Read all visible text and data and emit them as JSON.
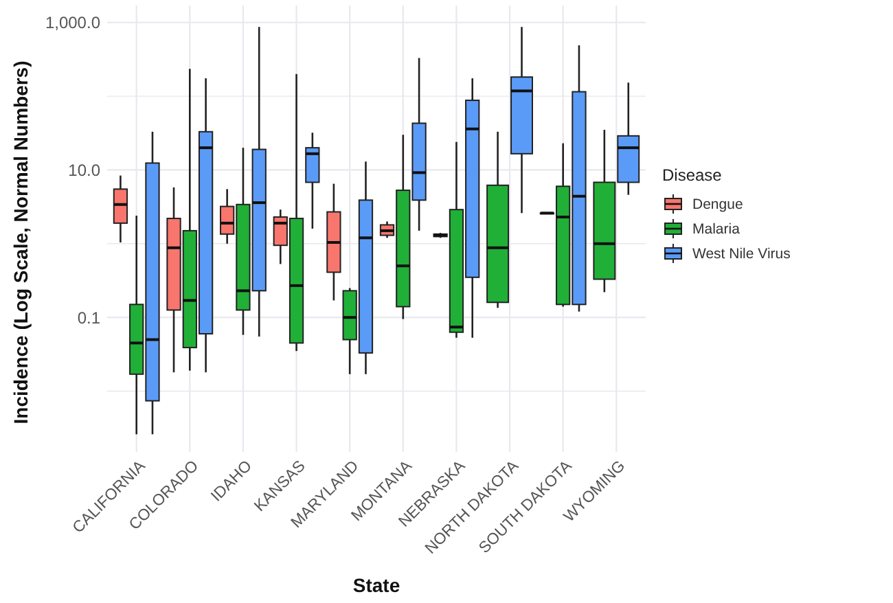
{
  "chart_data": {
    "type": "box",
    "xlabel": "State",
    "ylabel": "Incidence (Log Scale, Normal Numbers)",
    "legend_title": "Disease",
    "legend": "right",
    "grid": true,
    "log": "y",
    "categories": [
      "CALIFORNIA",
      "COLORADO",
      "IDAHO",
      "KANSAS",
      "MARYLAND",
      "MONTANA",
      "NEBRASKA",
      "NORTH DAKOTA",
      "SOUTH DAKOTA",
      "WYOMING"
    ],
    "ylim": [
      0.0015,
      1700
    ],
    "yticks": [
      {
        "value": 0.01,
        "label": null
      },
      0.1,
      {
        "value": 1,
        "label": null
      },
      {
        "value": 10,
        "label": "10.0"
      },
      {
        "value": 100,
        "label": null
      },
      {
        "value": 1000,
        "label": "1,000.0"
      }
    ],
    "series": [
      {
        "name": "Dengue",
        "color": "#f8766d",
        "boxes": [
          {
            "low": 1.04,
            "q1": 1.9,
            "median": 3.4,
            "q3": 5.5,
            "high": 8.4
          },
          {
            "low": 0.018,
            "q1": 0.126,
            "median": 0.88,
            "q3": 2.2,
            "high": 5.8
          },
          {
            "low": 1.0,
            "q1": 1.35,
            "median": 1.9,
            "q3": 3.2,
            "high": 5.5
          },
          {
            "low": 0.53,
            "q1": 0.95,
            "median": 1.9,
            "q3": 2.3,
            "high": 2.9
          },
          {
            "low": 0.17,
            "q1": 0.41,
            "median": 1.04,
            "q3": 2.7,
            "high": 6.5
          },
          {
            "low": 1.2,
            "q1": 1.3,
            "median": 1.5,
            "q3": 1.8,
            "high": 2.0
          },
          {
            "low": 1.2,
            "q1": 1.25,
            "median": 1.3,
            "q3": 1.35,
            "high": 1.4
          },
          null,
          {
            "low": 2.6,
            "q1": 2.6,
            "median": 2.6,
            "q3": 2.6,
            "high": 2.6
          },
          null
        ]
      },
      {
        "name": "Malaria",
        "color": "#20b038",
        "boxes": [
          {
            "low": 0.0026,
            "q1": 0.017,
            "median": 0.045,
            "q3": 0.15,
            "high": 2.4
          },
          {
            "low": 0.019,
            "q1": 0.039,
            "median": 0.17,
            "q3": 1.5,
            "high": 235
          },
          {
            "low": 0.058,
            "q1": 0.126,
            "median": 0.23,
            "q3": 3.4,
            "high": 20
          },
          {
            "low": 0.035,
            "q1": 0.045,
            "median": 0.27,
            "q3": 2.2,
            "high": 200
          },
          {
            "low": 0.017,
            "q1": 0.05,
            "median": 0.1,
            "q3": 0.23,
            "high": 0.25
          },
          {
            "low": 0.095,
            "q1": 0.14,
            "median": 0.5,
            "q3": 5.3,
            "high": 30
          },
          {
            "low": 0.053,
            "q1": 0.063,
            "median": 0.074,
            "q3": 2.9,
            "high": 24
          },
          {
            "low": 0.135,
            "q1": 0.16,
            "median": 0.88,
            "q3": 6.2,
            "high": 33
          },
          {
            "low": 0.14,
            "q1": 0.15,
            "median": 2.3,
            "q3": 6,
            "high": 23
          },
          {
            "low": 0.22,
            "q1": 0.33,
            "median": 1.0,
            "q3": 6.8,
            "high": 35
          }
        ]
      },
      {
        "name": "West Nile Virus",
        "color": "#5b9bf8",
        "boxes": [
          {
            "low": 0.0026,
            "q1": 0.0074,
            "median": 0.05,
            "q3": 12.4,
            "high": 33
          },
          {
            "low": 0.018,
            "q1": 0.06,
            "median": 20,
            "q3": 33,
            "high": 175
          },
          {
            "low": 0.055,
            "q1": 0.23,
            "median": 3.6,
            "q3": 19,
            "high": 870
          },
          {
            "low": 1.6,
            "q1": 6.8,
            "median": 16.6,
            "q3": 20,
            "high": 32
          },
          {
            "low": 0.017,
            "q1": 0.033,
            "median": 1.2,
            "q3": 3.9,
            "high": 13
          },
          {
            "low": 1.5,
            "q1": 3.9,
            "median": 9.2,
            "q3": 43,
            "high": 330
          },
          {
            "low": 0.053,
            "q1": 0.35,
            "median": 36,
            "q3": 88,
            "high": 175
          },
          {
            "low": 2.6,
            "q1": 16.6,
            "median": 118,
            "q3": 182,
            "high": 870
          },
          {
            "low": 0.12,
            "q1": 0.15,
            "median": 4.4,
            "q3": 115,
            "high": 490
          },
          {
            "low": 4.6,
            "q1": 6.8,
            "median": 20,
            "q3": 29,
            "high": 153
          }
        ]
      }
    ]
  }
}
